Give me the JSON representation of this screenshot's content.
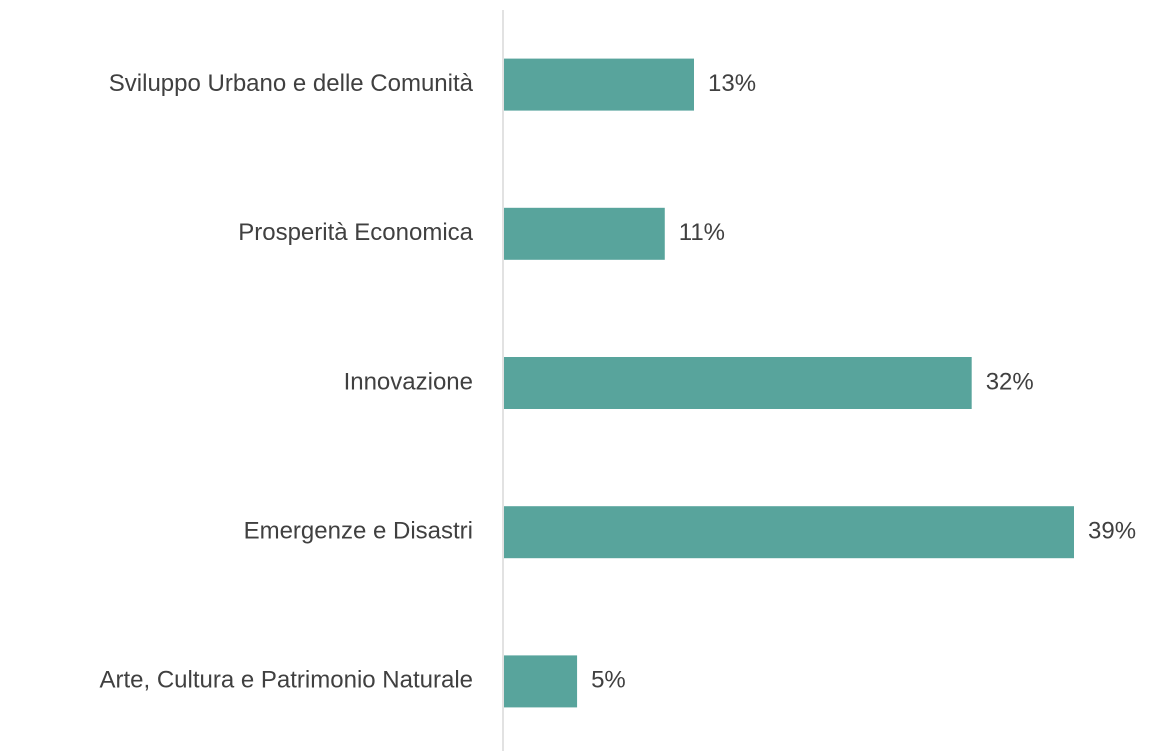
{
  "chart_data": {
    "type": "bar",
    "orientation": "horizontal",
    "categories": [
      "Sviluppo Urbano e delle Comunità",
      "Prosperità Economica",
      "Innovazione",
      "Emergenze e Disastri",
      "Arte, Cultura e Patrimonio Naturale"
    ],
    "values": [
      13,
      11,
      32,
      39,
      5
    ],
    "value_labels": [
      "13%",
      "11%",
      "32%",
      "39%",
      "5%"
    ],
    "color": "#58a49c"
  }
}
